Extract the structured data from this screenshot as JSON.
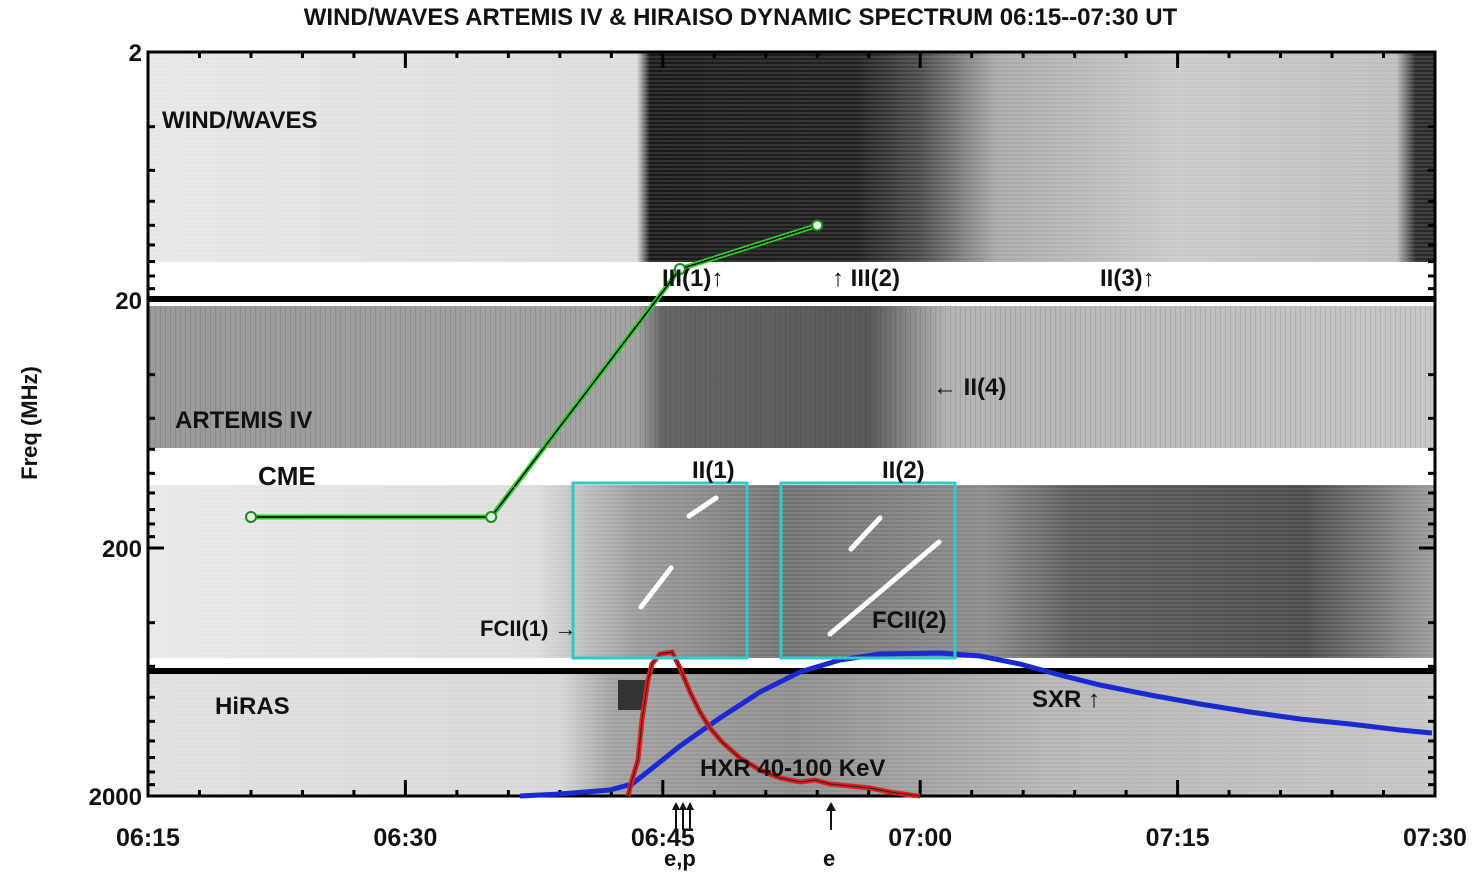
{
  "chart_data": {
    "type": "dynamic-spectrum",
    "title": "WIND/WAVES ARTEMIS IV & HIRAISO DYNAMIC SPECTRUM 06:15--07:30 UT",
    "ylabel": "Freq (MHz)",
    "y_scale": "log",
    "y_inverted": true,
    "ylim": [
      2,
      2000
    ],
    "y_ticks": [
      "2",
      "20",
      "200",
      "2000"
    ],
    "xlim": [
      "06:15",
      "07:30"
    ],
    "x_ticks": [
      "06:15",
      "06:30",
      "06:45",
      "07:00",
      "07:15",
      "07:30"
    ],
    "panels": [
      {
        "label": "WIND/WAVES",
        "freq_range_mhz": [
          2,
          14
        ]
      },
      {
        "label": "ARTEMIS IV",
        "freq_range_mhz": [
          20,
          118
        ]
      },
      {
        "label": "HiRAS",
        "freq_range_mhz": [
          650,
          2000
        ]
      }
    ],
    "cme_track": {
      "label": "CME",
      "color": "#2ecc2e",
      "points": [
        {
          "t": "06:21",
          "f": 150
        },
        {
          "t": "06:35",
          "f": 150
        },
        {
          "t": "06:46",
          "f": 15
        },
        {
          "t": "06:54",
          "f": 10
        }
      ]
    },
    "hxr_curve": {
      "label": "HXR 40-100 KeV",
      "color": "#e02020"
    },
    "sxr_curve": {
      "label": "SXR",
      "color": "#1a2ad0"
    },
    "boxes": [
      {
        "label": "II(1)",
        "t_range": [
          "06:40",
          "06:50"
        ],
        "f_range": [
          160,
          630
        ],
        "color": "#30c8c8"
      },
      {
        "label": "II(2)",
        "t_range": [
          "06:52",
          "07:02"
        ],
        "f_range": [
          160,
          630
        ],
        "color": "#30c8c8"
      }
    ],
    "annotations": [
      {
        "text": "III(1)↑",
        "t": "06:47",
        "f": 17
      },
      {
        "text": "↑ III(2)",
        "t": "06:57",
        "f": 17
      },
      {
        "text": "II(3)↑",
        "t": "07:12",
        "f": 17
      },
      {
        "text": "← II(4)",
        "t": "07:00",
        "f": 46
      },
      {
        "text": "FCII(1) →",
        "t": "06:42",
        "f": 450
      },
      {
        "text": "FCII(2)",
        "t": "06:59",
        "f": 430
      },
      {
        "text": "SXR ↑",
        "t": "07:11",
        "f": 870
      },
      {
        "text": "e,p",
        "t": "06:46",
        "below_axis": true
      },
      {
        "text": "e",
        "t": "06:55",
        "below_axis": true
      }
    ]
  }
}
